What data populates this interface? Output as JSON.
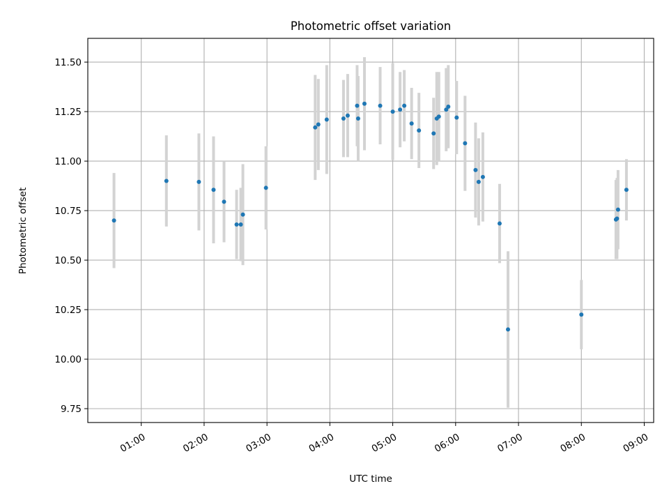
{
  "colors": {
    "point": "#1f77b4",
    "errorbar": "#d3d3d3",
    "grid": "#b0b0b0",
    "background": "#ffffff"
  },
  "chart_data": {
    "type": "scatter",
    "title": "Photometric offset variation",
    "xlabel": "UTC time",
    "ylabel": "Photometric offset",
    "x_axis_kind": "time",
    "xlim": [
      "00:09",
      "09:09"
    ],
    "ylim": [
      9.68,
      11.62
    ],
    "grid": true,
    "legend": "none",
    "x_ticks": [
      "01:00",
      "02:00",
      "03:00",
      "04:00",
      "05:00",
      "06:00",
      "07:00",
      "08:00",
      "09:00"
    ],
    "y_ticks": [
      "9.75",
      "10.00",
      "10.25",
      "10.50",
      "10.75",
      "11.00",
      "11.25",
      "11.50"
    ],
    "points": [
      {
        "x": "00:34",
        "y": 10.7,
        "err": 0.24
      },
      {
        "x": "01:24",
        "y": 10.9,
        "err": 0.23
      },
      {
        "x": "01:55",
        "y": 10.895,
        "err": 0.245
      },
      {
        "x": "02:09",
        "y": 10.855,
        "err": 0.27
      },
      {
        "x": "02:19",
        "y": 10.795,
        "err": 0.205
      },
      {
        "x": "02:31",
        "y": 10.68,
        "err": 0.175
      },
      {
        "x": "02:35",
        "y": 10.68,
        "err": 0.185
      },
      {
        "x": "02:37",
        "y": 10.73,
        "err": 0.255
      },
      {
        "x": "02:59",
        "y": 10.865,
        "err": 0.21
      },
      {
        "x": "03:46",
        "y": 11.17,
        "err": 0.265
      },
      {
        "x": "03:49",
        "y": 11.185,
        "err": 0.23
      },
      {
        "x": "03:57",
        "y": 11.21,
        "err": 0.275
      },
      {
        "x": "04:13",
        "y": 11.215,
        "err": 0.195
      },
      {
        "x": "04:17",
        "y": 11.23,
        "err": 0.21
      },
      {
        "x": "04:26",
        "y": 11.28,
        "err": 0.205
      },
      {
        "x": "04:27",
        "y": 11.215,
        "err": 0.215
      },
      {
        "x": "04:33",
        "y": 11.29,
        "err": 0.235
      },
      {
        "x": "04:48",
        "y": 11.28,
        "err": 0.195
      },
      {
        "x": "05:00",
        "y": 11.25,
        "err": 0.245
      },
      {
        "x": "05:07",
        "y": 11.26,
        "err": 0.19
      },
      {
        "x": "05:11",
        "y": 11.28,
        "err": 0.18
      },
      {
        "x": "05:18",
        "y": 11.19,
        "err": 0.18
      },
      {
        "x": "05:25",
        "y": 11.155,
        "err": 0.19
      },
      {
        "x": "05:39",
        "y": 11.14,
        "err": 0.18
      },
      {
        "x": "05:42",
        "y": 11.215,
        "err": 0.235
      },
      {
        "x": "05:44",
        "y": 11.225,
        "err": 0.225
      },
      {
        "x": "05:51",
        "y": 11.26,
        "err": 0.21
      },
      {
        "x": "05:53",
        "y": 11.275,
        "err": 0.21
      },
      {
        "x": "06:01",
        "y": 11.22,
        "err": 0.185
      },
      {
        "x": "06:09",
        "y": 11.09,
        "err": 0.24
      },
      {
        "x": "06:19",
        "y": 10.955,
        "err": 0.24
      },
      {
        "x": "06:22",
        "y": 10.895,
        "err": 0.22
      },
      {
        "x": "06:26",
        "y": 10.92,
        "err": 0.225
      },
      {
        "x": "06:42",
        "y": 10.685,
        "err": 0.2
      },
      {
        "x": "06:50",
        "y": 10.15,
        "err": 0.395
      },
      {
        "x": "08:00",
        "y": 10.225,
        "err": 0.175
      },
      {
        "x": "08:33",
        "y": 10.705,
        "err": 0.2
      },
      {
        "x": "08:34",
        "y": 10.71,
        "err": 0.205
      },
      {
        "x": "08:35",
        "y": 10.755,
        "err": 0.2
      },
      {
        "x": "08:43",
        "y": 10.855,
        "err": 0.155
      }
    ]
  }
}
